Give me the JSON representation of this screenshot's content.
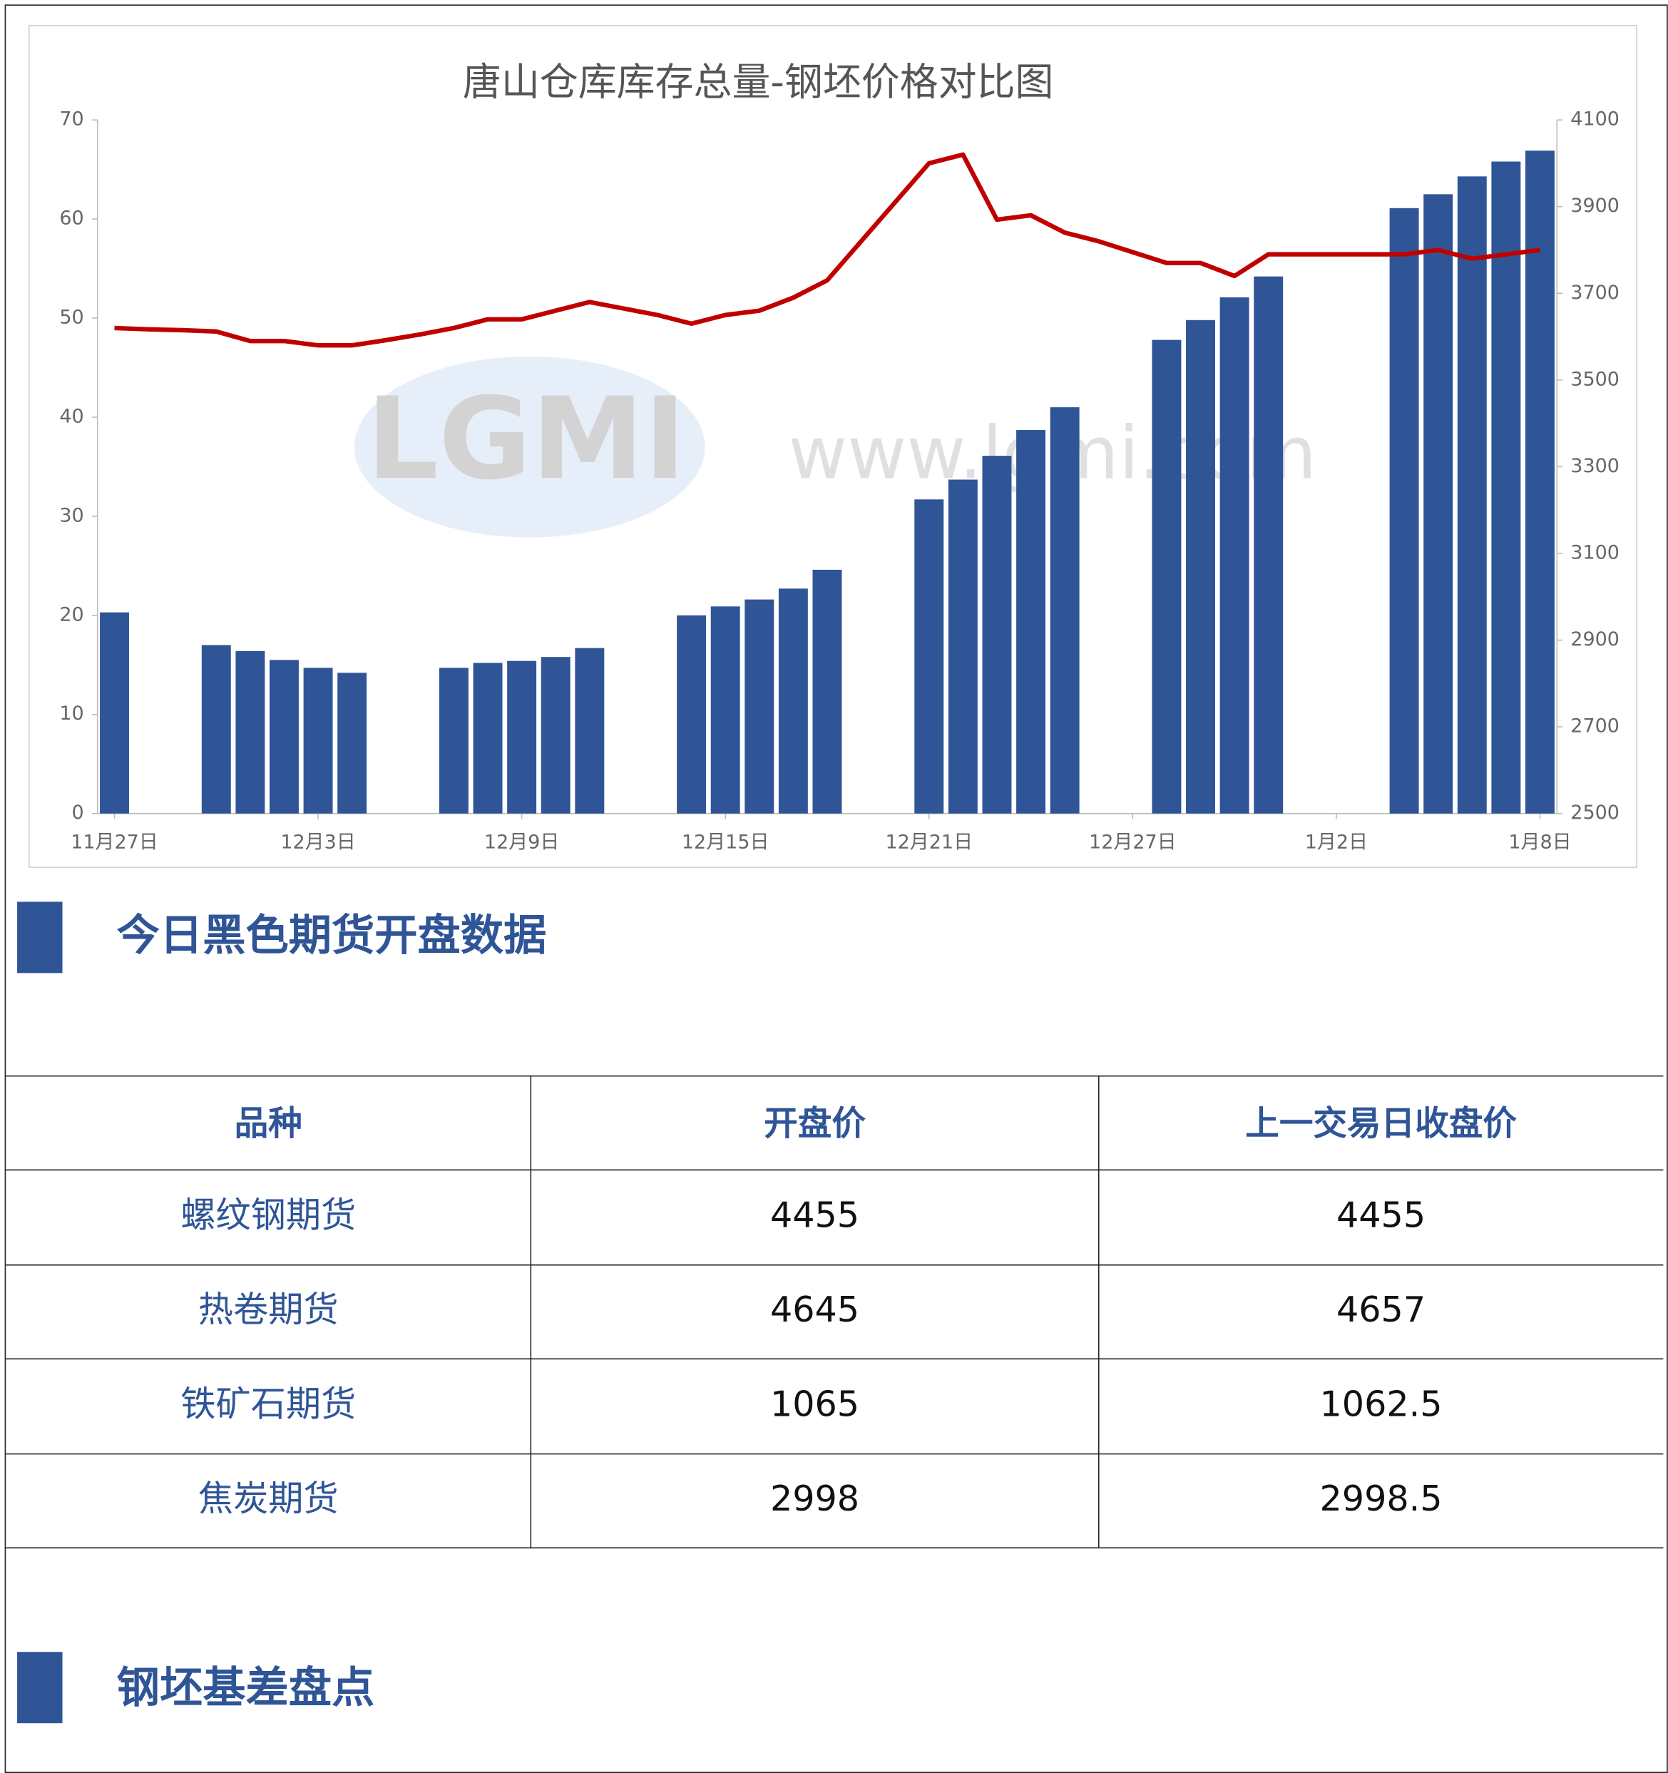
{
  "chart_data": {
    "type": "bar-line",
    "title": "唐山仓库库存总量-钢坯价格对比图",
    "watermark": [
      "LGMI",
      "www.lgmi.com"
    ],
    "categories": [
      "11月27日",
      null,
      null,
      null,
      null,
      null,
      "12月3日",
      null,
      null,
      null,
      null,
      null,
      "12月9日",
      null,
      null,
      null,
      null,
      null,
      "12月15日",
      null,
      null,
      null,
      null,
      null,
      "12月21日",
      null,
      null,
      null,
      null,
      null,
      "12月27日",
      null,
      null,
      null,
      null,
      null,
      "1月2日",
      null,
      null,
      null,
      null,
      null,
      "1月8日"
    ],
    "series": [
      {
        "type": "bar",
        "color": "#2f5597",
        "values": [
          20.3,
          null,
          null,
          17.0,
          16.4,
          15.5,
          14.7,
          14.2,
          null,
          null,
          14.7,
          15.2,
          15.4,
          15.8,
          16.7,
          null,
          null,
          20.0,
          20.9,
          21.6,
          22.7,
          24.6,
          null,
          null,
          31.7,
          33.7,
          36.1,
          38.7,
          41.0,
          null,
          null,
          47.8,
          49.8,
          52.1,
          54.2,
          null,
          null,
          null,
          61.1,
          62.5,
          64.3,
          65.8,
          66.9
        ]
      },
      {
        "type": "line",
        "axis": "y2",
        "color": "#c00000",
        "values": [
          3620,
          3617,
          3615,
          3612,
          3590,
          3590,
          3580,
          3580,
          3592,
          3605,
          3620,
          3640,
          3640,
          3660,
          3680,
          3665,
          3650,
          3630,
          3650,
          3660,
          3690,
          3730,
          3820,
          3910,
          4000,
          4020,
          3870,
          3880,
          3840,
          3820,
          3795,
          3770,
          3770,
          3740,
          3790,
          3790,
          3790,
          3790,
          3790,
          3800,
          3780,
          3790,
          3800
        ]
      }
    ],
    "ylim": [
      0,
      70
    ],
    "yticks": [
      0,
      10,
      20,
      30,
      40,
      50,
      60,
      70
    ],
    "y2lim": [
      2500,
      4100
    ],
    "y2ticks": [
      2500,
      2700,
      2900,
      3100,
      3300,
      3500,
      3700,
      3900,
      4100
    ]
  },
  "section1": {
    "title": "今日黑色期货开盘数据"
  },
  "table": {
    "header": [
      "品种",
      "开盘价",
      "上一交易日收盘价"
    ],
    "rows": [
      [
        "螺纹钢期货",
        "4455",
        "4455"
      ],
      [
        "热卷期货",
        "4645",
        "4657"
      ],
      [
        "铁矿石期货",
        "1065",
        "1062.5"
      ],
      [
        "焦炭期货",
        "2998",
        "2998.5"
      ]
    ]
  },
  "section2": {
    "title": "钢坯基差盘点"
  }
}
